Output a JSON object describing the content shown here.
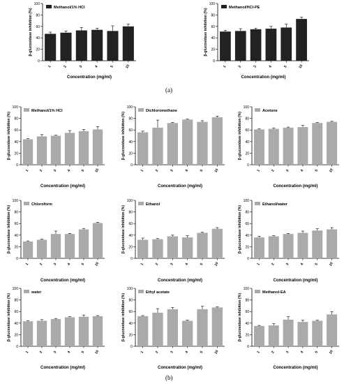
{
  "figure": {
    "label_a": "(a)",
    "label_b": "(b)"
  },
  "chart_data": [
    {
      "type": "bar",
      "group": "a",
      "legend": "Methanol/1% HCl",
      "bar_color": "#222222",
      "categories": [
        "1",
        "2",
        "3",
        "4",
        "5",
        "10"
      ],
      "values": [
        47,
        49,
        53,
        54,
        52,
        60
      ],
      "errors": [
        3,
        3,
        5,
        3,
        9,
        4
      ],
      "xlabel": "Concentration (mg/ml)",
      "ylabel": "β-glucosidase inhibition (%)",
      "ylim": [
        0,
        100
      ],
      "yticks": [
        0,
        20,
        40,
        60,
        80,
        100
      ]
    },
    {
      "type": "bar",
      "group": "a",
      "legend": "Methanol/HCl-PE",
      "bar_color": "#222222",
      "categories": [
        "1",
        "2",
        "3",
        "4",
        "5",
        "10"
      ],
      "values": [
        51,
        52,
        55,
        56,
        58,
        73
      ],
      "errors": [
        2,
        4,
        2,
        4,
        6,
        3
      ],
      "xlabel": "Concentration (mg/ml)",
      "ylabel": "β-glucosidase inhibition (%)",
      "ylim": [
        0,
        100
      ],
      "yticks": [
        0,
        20,
        40,
        60,
        80,
        100
      ]
    },
    {
      "type": "bar",
      "group": "b",
      "legend": "Methanol/1% HCl",
      "bar_color": "#aaaaaa",
      "categories": [
        "1",
        "2",
        "3",
        "4",
        "5",
        "10"
      ],
      "values": [
        44,
        49,
        50,
        55,
        58,
        61
      ],
      "errors": [
        1,
        3,
        1,
        4,
        3,
        5
      ],
      "xlabel": "Concentration (mg/ml)",
      "ylabel": "β-glucosidase inhibition (%)",
      "ylim": [
        0,
        100
      ],
      "yticks": [
        0,
        20,
        40,
        60,
        80,
        100
      ]
    },
    {
      "type": "bar",
      "group": "b",
      "legend": "Dichloromethane",
      "bar_color": "#aaaaaa",
      "categories": [
        "1",
        "2",
        "3",
        "4",
        "5",
        "10"
      ],
      "values": [
        56,
        64,
        72,
        78,
        74,
        82
      ],
      "errors": [
        2,
        13,
        1,
        1,
        2,
        2
      ],
      "xlabel": "Concentration (mg/ml)",
      "ylabel": "β-glucosidase inhibition (%)",
      "ylim": [
        0,
        100
      ],
      "yticks": [
        0,
        20,
        40,
        60,
        80,
        100
      ]
    },
    {
      "type": "bar",
      "group": "b",
      "legend": "Acetone",
      "bar_color": "#aaaaaa",
      "categories": [
        "1",
        "2",
        "3",
        "4",
        "5",
        "10"
      ],
      "values": [
        61,
        62,
        64,
        65,
        72,
        74
      ],
      "errors": [
        1,
        1,
        1,
        3,
        1,
        1
      ],
      "xlabel": "Concentration (mg/ml)",
      "ylabel": "β-glucosidase inhibition (%)",
      "ylim": [
        0,
        100
      ],
      "yticks": [
        0,
        20,
        40,
        60,
        80,
        100
      ]
    },
    {
      "type": "bar",
      "group": "b",
      "legend": "Chloroform",
      "bar_color": "#aaaaaa",
      "categories": [
        "1",
        "2",
        "3",
        "4",
        "5",
        "10"
      ],
      "values": [
        29,
        32,
        42,
        42,
        50,
        61
      ],
      "errors": [
        1,
        1,
        5,
        1,
        1,
        1
      ],
      "xlabel": "Concentration (mg/ml)",
      "ylabel": "β-glucosidase inhibition (%)",
      "ylim": [
        0,
        100
      ],
      "yticks": [
        0,
        20,
        40,
        60,
        80,
        100
      ]
    },
    {
      "type": "bar",
      "group": "b",
      "legend": "Ethanol",
      "bar_color": "#aaaaaa",
      "categories": [
        "1",
        "2",
        "3",
        "4",
        "5",
        "10"
      ],
      "values": [
        32,
        33,
        38,
        36,
        44,
        51
      ],
      "errors": [
        3,
        1,
        2,
        3,
        1,
        2
      ],
      "xlabel": "Concentration (mg/ml)",
      "ylabel": "β-glucosidase inhibition (%)",
      "ylim": [
        0,
        100
      ],
      "yticks": [
        0,
        20,
        40,
        60,
        80,
        100
      ]
    },
    {
      "type": "bar",
      "group": "b",
      "legend": "Ethanol/water",
      "bar_color": "#aaaaaa",
      "categories": [
        "1",
        "2",
        "3",
        "4",
        "5",
        "10"
      ],
      "values": [
        36,
        38,
        42,
        44,
        48,
        50
      ],
      "errors": [
        2,
        1,
        1,
        3,
        3,
        3
      ],
      "xlabel": "Concentration (mg/ml)",
      "ylabel": "β-glucosidase inhibition (%)",
      "ylim": [
        0,
        100
      ],
      "yticks": [
        0,
        20,
        40,
        60,
        80,
        100
      ]
    },
    {
      "type": "bar",
      "group": "b",
      "legend": "water",
      "bar_color": "#aaaaaa",
      "categories": [
        "1",
        "2",
        "3",
        "4",
        "5",
        "10"
      ],
      "values": [
        43,
        44,
        47,
        50,
        51,
        52
      ],
      "errors": [
        1,
        2,
        1,
        1,
        3,
        1
      ],
      "xlabel": "Concentration (mg/ml)",
      "ylabel": "β-glucosidase inhibition (%)",
      "ylim": [
        0,
        100
      ],
      "yticks": [
        0,
        20,
        40,
        60,
        80,
        100
      ]
    },
    {
      "type": "bar",
      "group": "b",
      "legend": "Ethyl acetate",
      "bar_color": "#aaaaaa",
      "categories": [
        "1",
        "2",
        "3",
        "4",
        "5",
        "10"
      ],
      "values": [
        52,
        58,
        64,
        44,
        64,
        67
      ],
      "errors": [
        1,
        7,
        3,
        1,
        5,
        1
      ],
      "xlabel": "Concentration (mg/ml)",
      "ylabel": "β-glucosidase inhibition (%)",
      "ylim": [
        0,
        100
      ],
      "yticks": [
        0,
        20,
        40,
        60,
        80,
        100
      ]
    },
    {
      "type": "bar",
      "group": "b",
      "legend": "Methanol-EA",
      "bar_color": "#aaaaaa",
      "categories": [
        "1",
        "2",
        "3",
        "4",
        "5",
        "10"
      ],
      "values": [
        35,
        36,
        46,
        42,
        44,
        55
      ],
      "errors": [
        1,
        3,
        5,
        3,
        1,
        5
      ],
      "xlabel": "Concentration (mg/ml)",
      "ylabel": "β-glucosidase inhibition (%)",
      "ylim": [
        0,
        100
      ],
      "yticks": [
        0,
        20,
        40,
        60,
        80,
        100
      ]
    }
  ]
}
